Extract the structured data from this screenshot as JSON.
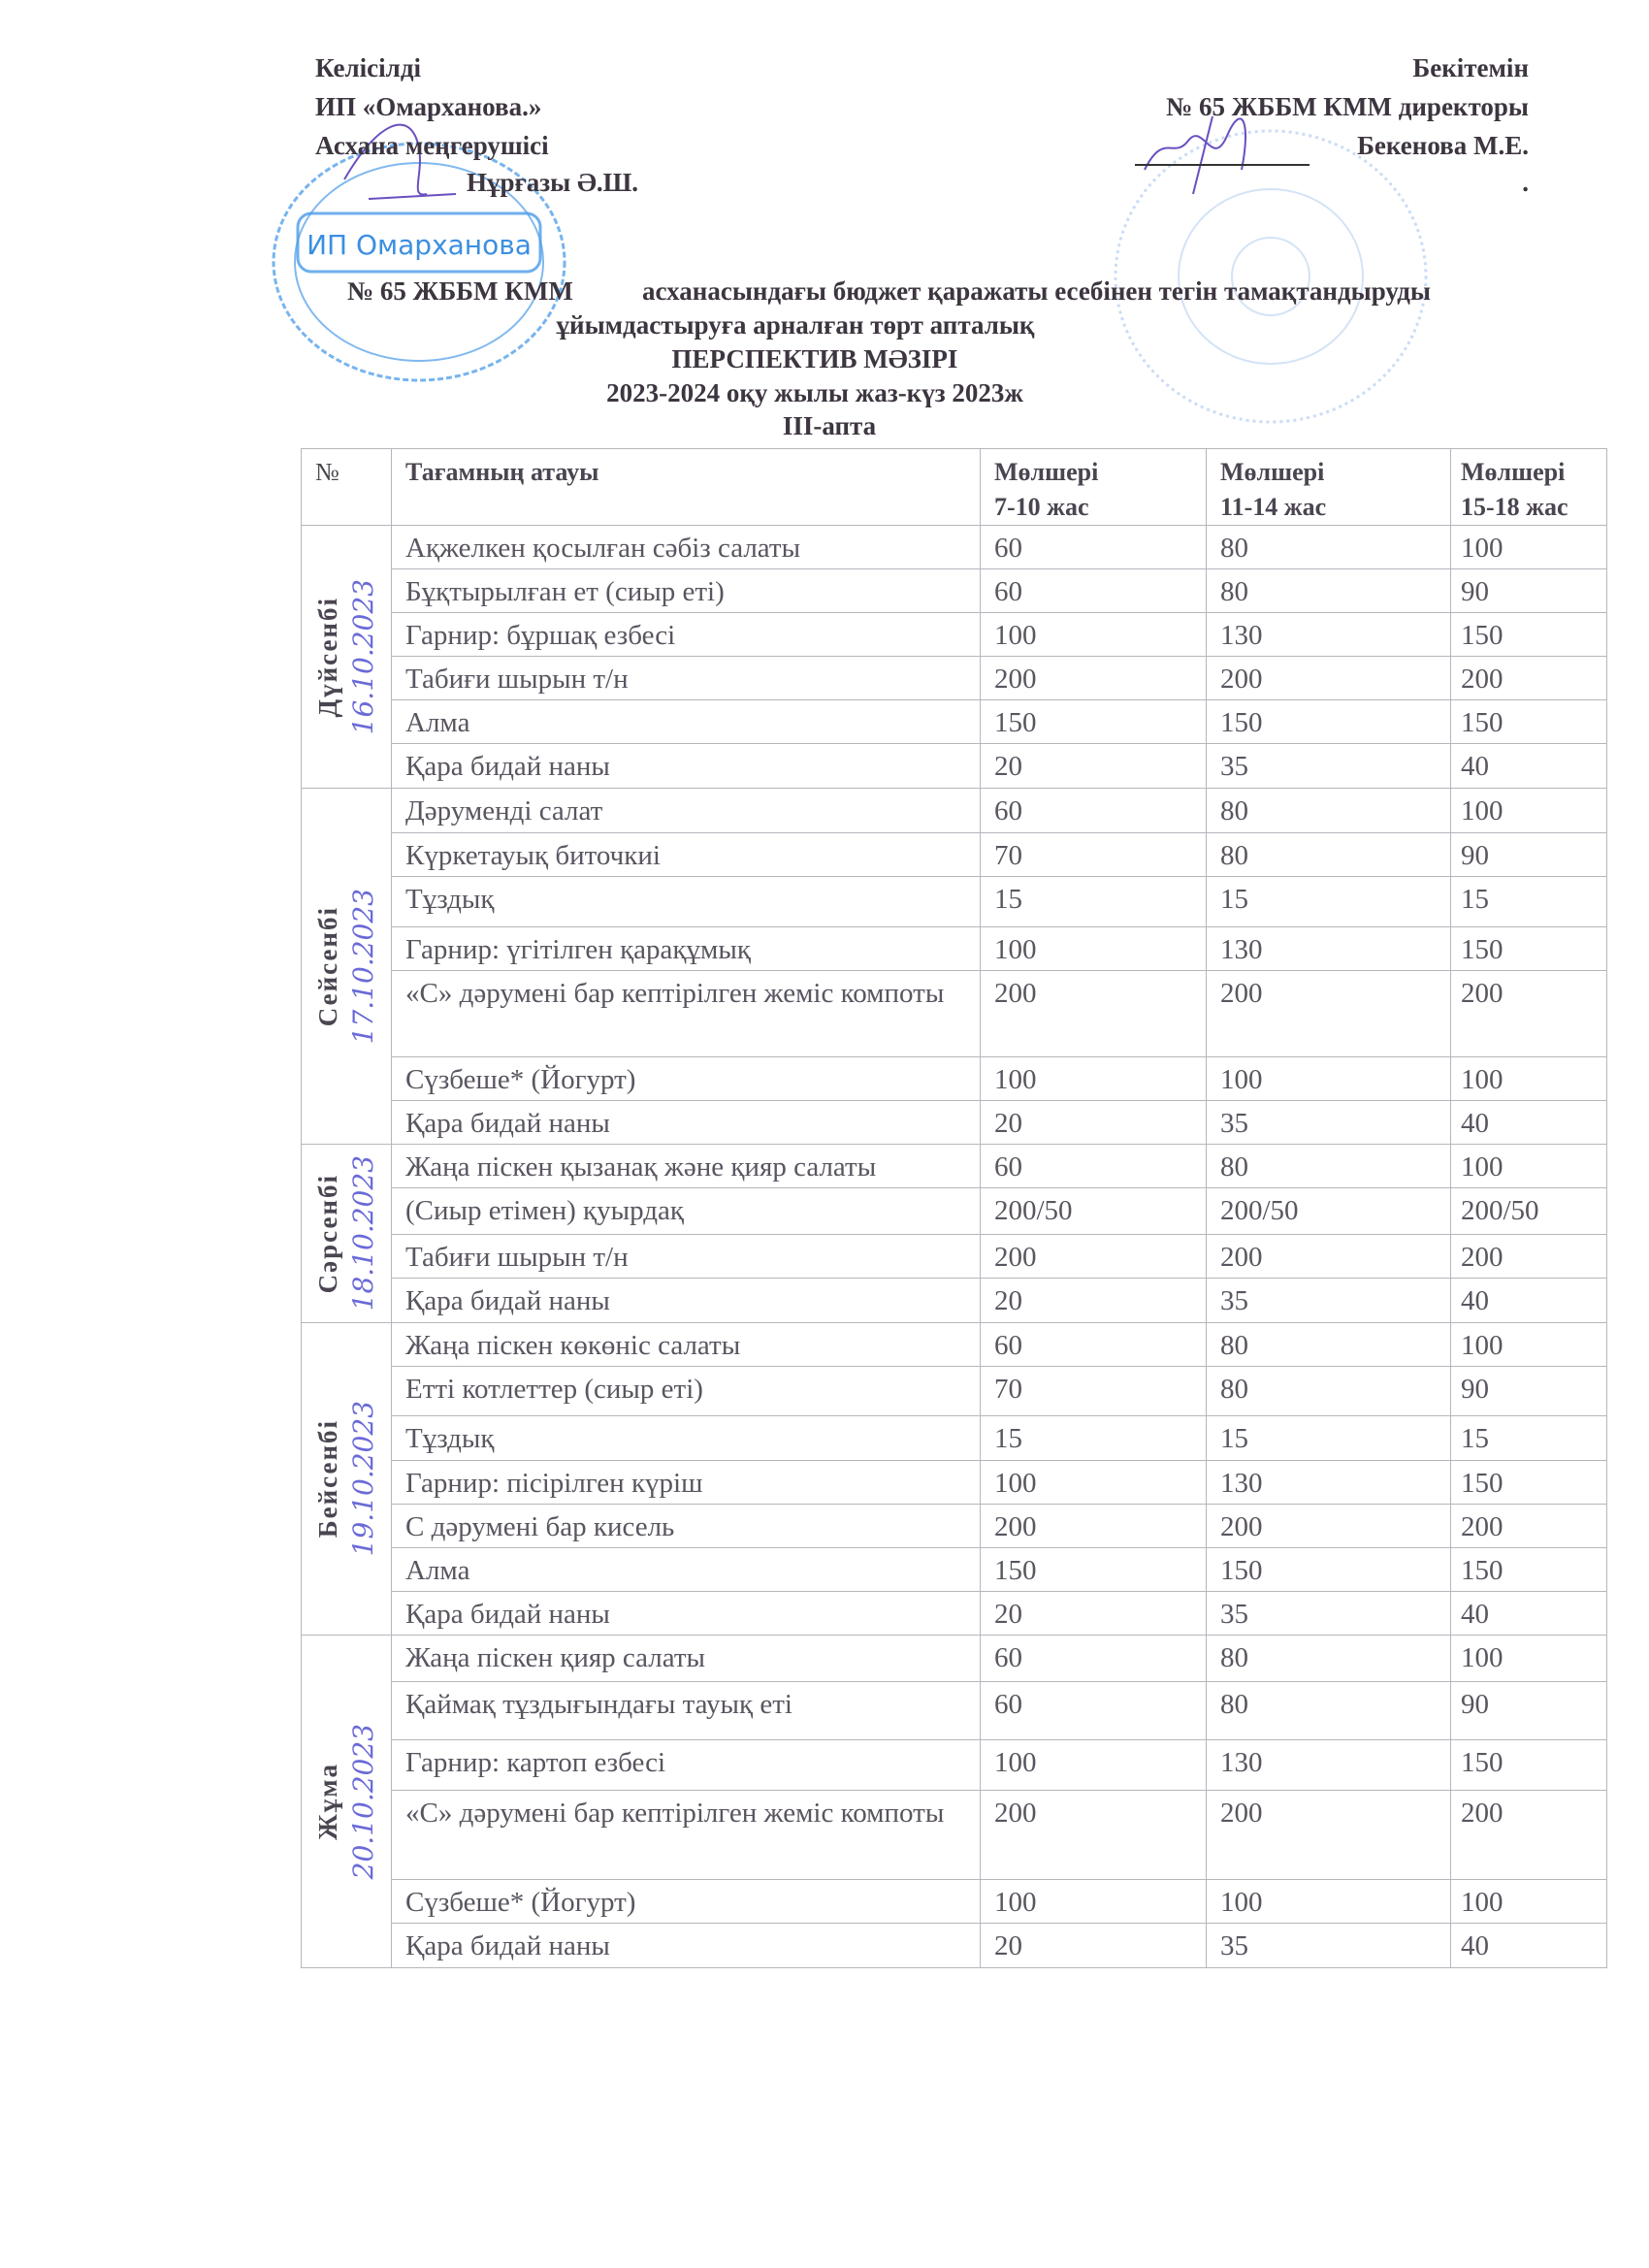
{
  "approval_left": {
    "line1": "Келісілді",
    "line2": "ИП «Омарханова.»",
    "line3": "Асхана меңгерушісі",
    "line4": "Нұрғазы  Ә.Ш.",
    "stamp_text": "ИП Омарханова",
    "stamp_color": "#3b8fe0"
  },
  "approval_right": {
    "line1": "Бекітемін",
    "line2": "№ 65 ЖББМ КММ директоры",
    "line3": "Бекенова М.Е.",
    "line4": "."
  },
  "title": {
    "line1a": "№ 65 ЖББМ КММ",
    "line1b": "асханасындағы бюджет қаражаты есебінен тегін тамақтандыруды",
    "line2": "ұйымдастыруға арналған төрт апталық",
    "line3": "ПЕРСПЕКТИВ   МӘЗІРІ",
    "line4": "2023-2024 оқу жылы жаз-күз 2023ж",
    "line5": "ІІІ-апта"
  },
  "table": {
    "headers": {
      "num": "№",
      "name": "Тағамның атауы",
      "age1": "Мөлшері\n7-10 жас",
      "age2": "Мөлшері\n11-14 жас",
      "age3": "Мөлшері\n15-18 жас"
    },
    "days": [
      {
        "day": "Дүйсенбі",
        "date": "16.10.2023",
        "rows": [
          [
            "Ақжелкен қосылған сәбіз салаты",
            "60",
            "80",
            "100"
          ],
          [
            "Бұқтырылған ет (сиыр еті)",
            "60",
            "80",
            "90"
          ],
          [
            "Гарнир: бұршақ езбесі",
            "100",
            "130",
            "150"
          ],
          [
            "Табиғи шырын т/н",
            "200",
            "200",
            "200"
          ],
          [
            "Алма",
            "150",
            "150",
            "150"
          ],
          [
            "Қара бидай наны",
            "20",
            "35",
            "40"
          ]
        ]
      },
      {
        "day": "Сейсенбі",
        "date": "17.10.2023",
        "rows": [
          [
            "Дәруменді салат",
            "60",
            "80",
            "100"
          ],
          [
            "Күркетауық биточкиі",
            "70",
            "80",
            "90"
          ],
          [
            "Тұздық",
            "15",
            "15",
            "15"
          ],
          [
            "Гарнир: үгітілген қарақұмық",
            "100",
            "130",
            "150"
          ],
          [
            "«С» дәрумені бар кептірілген жеміс компоты",
            "200",
            "200",
            "200"
          ],
          [
            "Сүзбеше* (Йогурт)",
            "100",
            "100",
            "100"
          ],
          [
            "Қара бидай наны",
            "20",
            "35",
            "40"
          ]
        ]
      },
      {
        "day": "Сәрсенбі",
        "date": "18.10.2023",
        "rows": [
          [
            "Жаңа піскен қызанақ және қияр  салаты",
            "60",
            "80",
            "100"
          ],
          [
            "(Сиыр етімен)   қуырдақ",
            "200/50",
            "200/50",
            "200/50"
          ],
          [
            "Табиғи шырын т/н",
            "200",
            "200",
            "200"
          ],
          [
            "Қара бидай наны",
            "20",
            "35",
            "40"
          ]
        ]
      },
      {
        "day": "Бейсенбі",
        "date": "19.10.2023",
        "rows": [
          [
            "Жаңа піскен көкөніс салаты",
            "60",
            "80",
            "100"
          ],
          [
            "Етті котлеттер (сиыр еті)",
            "70",
            "80",
            "90"
          ],
          [
            "Тұздық",
            "15",
            "15",
            "15"
          ],
          [
            "Гарнир: пісірілген күріш",
            "100",
            "130",
            "150"
          ],
          [
            "С дәрумені бар кисель",
            "200",
            "200",
            "200"
          ],
          [
            "Алма",
            "150",
            "150",
            "150"
          ],
          [
            "Қара бидай наны",
            "20",
            "35",
            "40"
          ]
        ]
      },
      {
        "day": "Жұма",
        "date": "20.10.2023",
        "rows": [
          [
            "Жаңа піскен қияр салаты",
            "60",
            "80",
            "100"
          ],
          [
            "Қаймақ тұздығындағы тауық еті",
            "60",
            "80",
            "90"
          ],
          [
            "Гарнир: картоп езбесі",
            "100",
            "130",
            "150"
          ],
          [
            "«С» дәрумені бар кептірілген жеміс компоты",
            "200",
            "200",
            "200"
          ],
          [
            "Сүзбеше* (Йогурт)",
            "100",
            "100",
            "100"
          ],
          [
            "Қара бидай наны",
            "20",
            "35",
            "40"
          ]
        ]
      }
    ]
  }
}
